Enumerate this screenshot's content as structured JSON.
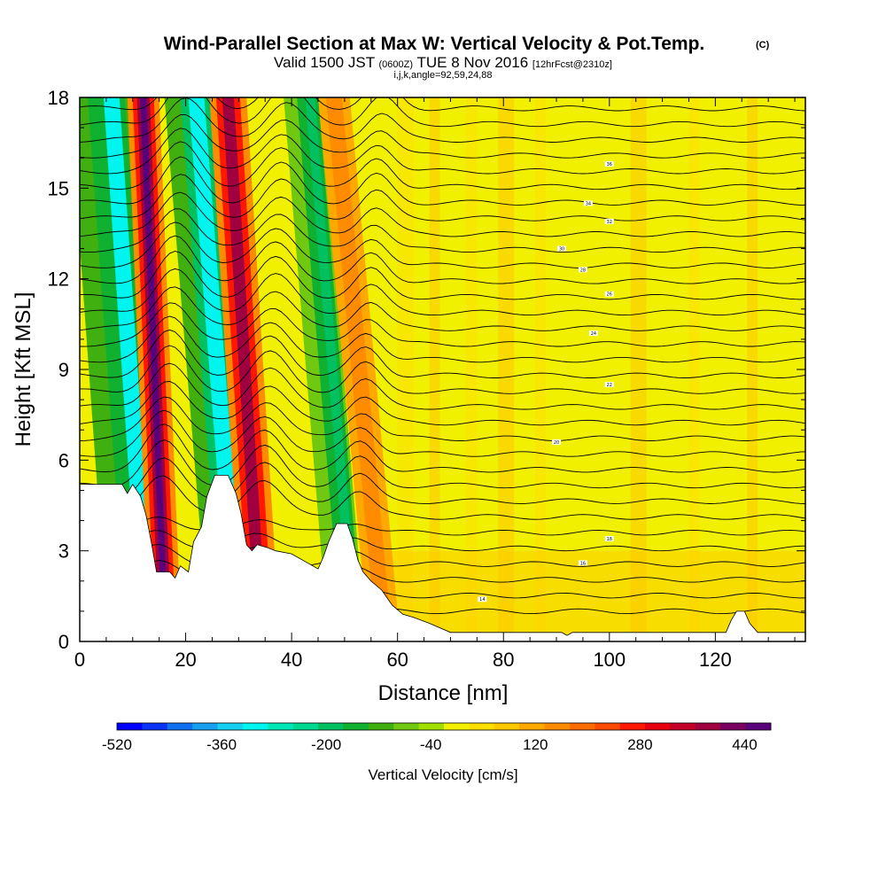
{
  "header": {
    "title": "Wind-Parallel Section at Max W: Vertical Velocity & Pot.Temp.",
    "copyright": "(C)",
    "valid_prefix": "Valid 1500 JST",
    "valid_zulu": "(0600Z)",
    "valid_date": "TUE 8 Nov 2016",
    "forecast": "[12hrFcst@2310z]",
    "indices": "i,j,k,angle=92,59,24,88"
  },
  "chart_data": {
    "type": "heatmap",
    "title": "Wind-Parallel Section at Max W: Vertical Velocity & Pot.Temp.",
    "xlabel": "Distance [nm]",
    "ylabel": "Height [Kft MSL]",
    "xlim": [
      0,
      137
    ],
    "ylim": [
      0,
      18
    ],
    "x_ticks": [
      0,
      20,
      40,
      60,
      80,
      100,
      120
    ],
    "y_ticks": [
      0,
      3,
      6,
      9,
      12,
      15,
      18
    ],
    "colorbar": {
      "label": "Vertical Velocity [cm/s]",
      "min": -520,
      "max": 480,
      "step": 40,
      "tick_labels": [
        "-520",
        "-360",
        "-200",
        "-40",
        "120",
        "280",
        "440"
      ],
      "colors": [
        "#0000ff",
        "#0a33f5",
        "#1170f0",
        "#18a0f0",
        "#15d0f0",
        "#00f5ee",
        "#00e8b8",
        "#00d890",
        "#00c060",
        "#10b030",
        "#40b010",
        "#70c810",
        "#a0e000",
        "#f0f000",
        "#ffe000",
        "#ffc800",
        "#ffa800",
        "#ff8c00",
        "#ff6c00",
        "#ff4a00",
        "#ff1800",
        "#e80010",
        "#c40028",
        "#a00040",
        "#7a0060",
        "#5a007a"
      ]
    },
    "terrain_top_kft": [
      [
        0,
        5.2
      ],
      [
        8,
        5.2
      ],
      [
        9,
        4.9
      ],
      [
        10,
        5.2
      ],
      [
        11.5,
        4.8
      ],
      [
        12.5,
        4.2
      ],
      [
        13.5,
        3.3
      ],
      [
        14.5,
        2.3
      ],
      [
        17,
        2.3
      ],
      [
        18,
        2.1
      ],
      [
        19,
        2.5
      ],
      [
        20.5,
        2.3
      ],
      [
        21.5,
        3.3
      ],
      [
        23,
        3.8
      ],
      [
        24,
        4.8
      ],
      [
        25.5,
        5.5
      ],
      [
        28,
        5.5
      ],
      [
        29.5,
        4.9
      ],
      [
        30.5,
        4.2
      ],
      [
        31.5,
        3.2
      ],
      [
        32.5,
        3.0
      ],
      [
        33.5,
        3.2
      ],
      [
        35.5,
        3.1
      ],
      [
        37,
        3.0
      ],
      [
        40,
        2.9
      ],
      [
        43,
        2.6
      ],
      [
        45,
        2.4
      ],
      [
        46,
        2.8
      ],
      [
        47,
        3.3
      ],
      [
        48.5,
        3.9
      ],
      [
        50.5,
        3.9
      ],
      [
        51.5,
        3.4
      ],
      [
        52.5,
        2.7
      ],
      [
        53.5,
        2.3
      ],
      [
        55,
        2.0
      ],
      [
        57,
        1.7
      ],
      [
        59,
        1.2
      ],
      [
        61,
        0.9
      ],
      [
        63,
        0.8
      ],
      [
        66,
        0.6
      ],
      [
        70,
        0.3
      ],
      [
        91,
        0.3
      ],
      [
        92,
        0.2
      ],
      [
        93,
        0.3
      ],
      [
        122,
        0.3
      ],
      [
        123,
        0.7
      ],
      [
        124,
        1.0
      ],
      [
        125.5,
        1.0
      ],
      [
        126.5,
        0.6
      ],
      [
        128,
        0.3
      ],
      [
        137,
        0.3
      ]
    ],
    "isentropes_labeled": [
      "36",
      "34",
      "32",
      "30",
      "28",
      "26",
      "24",
      "22",
      "20",
      "18",
      "16",
      "14"
    ]
  }
}
